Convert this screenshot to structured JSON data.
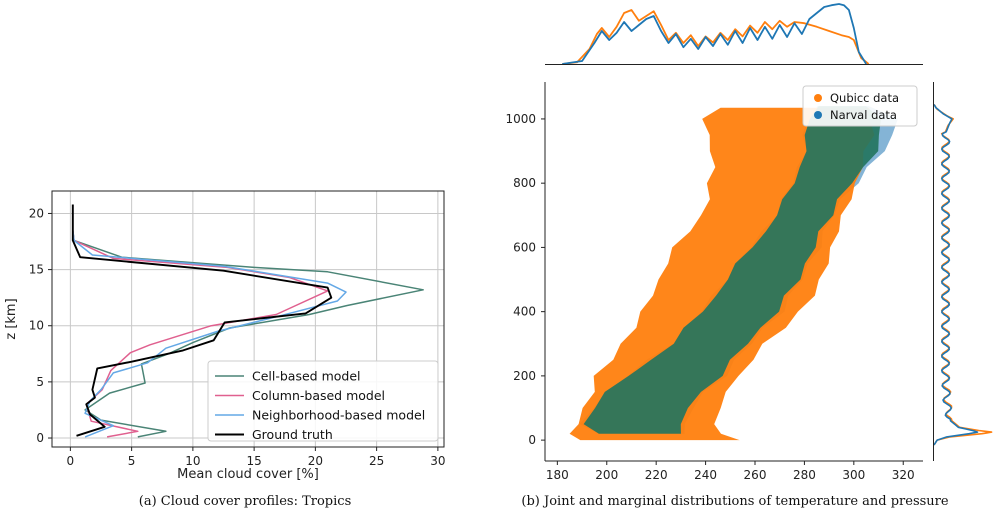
{
  "chart_data": [
    {
      "type": "line",
      "caption": "(a) Cloud cover profiles: Tropics",
      "xlabel": "Mean cloud cover [%]",
      "ylabel": "z [km]",
      "xlim": [
        -1.5,
        30.5
      ],
      "ylim": [
        -0.8,
        22
      ],
      "xticks": [
        0,
        5,
        10,
        15,
        20,
        25,
        30
      ],
      "yticks": [
        0,
        5,
        10,
        15,
        20
      ],
      "grid": true,
      "legend_position": "lower-right",
      "series": [
        {
          "name": "Cell-based model",
          "color": "#4a8476",
          "points": [
            [
              0.2,
              20.8
            ],
            [
              0.2,
              18.5
            ],
            [
              0.3,
              17.6
            ],
            [
              4.2,
              16.1
            ],
            [
              15,
              15.2
            ],
            [
              21,
              14.8
            ],
            [
              28.8,
              13.2
            ],
            [
              22.6,
              11.8
            ],
            [
              19.5,
              11.0
            ],
            [
              13,
              9.8
            ],
            [
              10,
              8.5
            ],
            [
              8,
              7.5
            ],
            [
              5.8,
              6.6
            ],
            [
              6.1,
              4.9
            ],
            [
              3.2,
              4.0
            ],
            [
              1.2,
              2.5
            ],
            [
              2.5,
              1.6
            ],
            [
              7.8,
              0.6
            ],
            [
              5.5,
              0.1
            ]
          ]
        },
        {
          "name": "Column-based model",
          "color": "#e0608f",
          "points": [
            [
              0.2,
              20.8
            ],
            [
              0.2,
              18.5
            ],
            [
              0.3,
              17.6
            ],
            [
              3.5,
              16.0
            ],
            [
              12.8,
              15.2
            ],
            [
              17.9,
              14.3
            ],
            [
              21.0,
              13.1
            ],
            [
              16.8,
              11.0
            ],
            [
              11.5,
              10.0
            ],
            [
              6.5,
              8.3
            ],
            [
              4.9,
              7.6
            ],
            [
              3.3,
              6.0
            ],
            [
              2.6,
              4.3
            ],
            [
              1.3,
              3.0
            ],
            [
              1.7,
              1.5
            ],
            [
              5.5,
              0.6
            ],
            [
              3.0,
              0.1
            ]
          ]
        },
        {
          "name": "Neighborhood-based model",
          "color": "#64a8e6",
          "points": [
            [
              0.2,
              20.8
            ],
            [
              0.2,
              18.5
            ],
            [
              0.3,
              17.6
            ],
            [
              1.8,
              16.3
            ],
            [
              12.5,
              15.3
            ],
            [
              21.0,
              13.8
            ],
            [
              22.5,
              13.0
            ],
            [
              21.8,
              12.2
            ],
            [
              16.8,
              10.8
            ],
            [
              12,
              9.5
            ],
            [
              7.8,
              8.0
            ],
            [
              6.3,
              6.7
            ],
            [
              3.5,
              5.8
            ],
            [
              2.5,
              4.3
            ],
            [
              1.6,
              3.3
            ],
            [
              1.2,
              2.2
            ],
            [
              3.5,
              1.1
            ],
            [
              1.2,
              0.1
            ]
          ]
        },
        {
          "name": "Ground truth",
          "color": "#000000",
          "points": [
            [
              0.2,
              20.8
            ],
            [
              0.2,
              18.5
            ],
            [
              0.2,
              17.6
            ],
            [
              0.8,
              16.1
            ],
            [
              12.5,
              14.9
            ],
            [
              21.0,
              13.4
            ],
            [
              21.3,
              12.5
            ],
            [
              19.2,
              11.1
            ],
            [
              12.6,
              10.3
            ],
            [
              11.7,
              8.7
            ],
            [
              9.2,
              7.8
            ],
            [
              5.0,
              6.8
            ],
            [
              2.2,
              6.2
            ],
            [
              1.8,
              4.3
            ],
            [
              2.0,
              3.6
            ],
            [
              1.3,
              3.0
            ],
            [
              1.6,
              2.1
            ],
            [
              2.8,
              1.0
            ],
            [
              0.5,
              0.2
            ]
          ]
        }
      ]
    },
    {
      "type": "scatter",
      "caption": "(b) Joint and marginal distributions of temperature and pressure",
      "xlim": [
        175,
        328
      ],
      "ylim": [
        1115,
        -65
      ],
      "xticks": [
        180,
        200,
        220,
        240,
        260,
        280,
        300,
        320
      ],
      "yticks": [
        0,
        200,
        400,
        600,
        800,
        1000
      ],
      "legend_position": "top-right",
      "series": [
        {
          "name": "Qubicc data",
          "color": "#ff7f0e",
          "band": [
            [
              0,
              190,
              252
            ],
            [
              20,
              188,
              245
            ],
            [
              50,
              190,
              240
            ],
            [
              100,
              193,
              245
            ],
            [
              150,
              196,
              246
            ],
            [
              200,
              198,
              252
            ],
            [
              250,
              204,
              256
            ],
            [
              300,
              208,
              262
            ],
            [
              350,
              213,
              270
            ],
            [
              400,
              217,
              276
            ],
            [
              450,
              220,
              281
            ],
            [
              500,
              223,
              285
            ],
            [
              550,
              226,
              287
            ],
            [
              600,
              230,
              289
            ],
            [
              650,
              235,
              291
            ],
            [
              700,
              240,
              294
            ],
            [
              750,
              243,
              296
            ],
            [
              800,
              244,
              299
            ],
            [
              850,
              245,
              301
            ],
            [
              900,
              244,
              303
            ],
            [
              950,
              243,
              305
            ],
            [
              1000,
              242,
              305
            ],
            [
              1035,
              247,
              304
            ]
          ]
        },
        {
          "name": "Narval data",
          "color": "#1f77b4",
          "band": [
            [
              20,
              198,
              228
            ],
            [
              50,
              193,
              230
            ],
            [
              100,
              196,
              232
            ],
            [
              150,
              202,
              238
            ],
            [
              200,
              210,
              245
            ],
            [
              250,
              220,
              250
            ],
            [
              300,
              228,
              256
            ],
            [
              350,
              234,
              262
            ],
            [
              400,
              240,
              268
            ],
            [
              450,
              246,
              272
            ],
            [
              500,
              250,
              277
            ],
            [
              550,
              255,
              280
            ],
            [
              600,
              260,
              283
            ],
            [
              650,
              266,
              286
            ],
            [
              700,
              270,
              290
            ],
            [
              750,
              274,
              293
            ],
            [
              800,
              277,
              298
            ],
            [
              850,
              280,
              304
            ],
            [
              900,
              282,
              310
            ],
            [
              950,
              283,
              314
            ],
            [
              1000,
              283,
              314
            ],
            [
              1040,
              288,
              305
            ]
          ]
        }
      ],
      "marginal_x": {
        "qubicc": [
          [
            182,
            0.0
          ],
          [
            188,
            0.03
          ],
          [
            193,
            0.25
          ],
          [
            196,
            0.5
          ],
          [
            198,
            0.6
          ],
          [
            201,
            0.45
          ],
          [
            204,
            0.62
          ],
          [
            207,
            0.85
          ],
          [
            210,
            0.9
          ],
          [
            213,
            0.72
          ],
          [
            216,
            0.8
          ],
          [
            219,
            0.88
          ],
          [
            222,
            0.65
          ],
          [
            225,
            0.4
          ],
          [
            228,
            0.52
          ],
          [
            231,
            0.35
          ],
          [
            234,
            0.48
          ],
          [
            237,
            0.3
          ],
          [
            240,
            0.46
          ],
          [
            243,
            0.36
          ],
          [
            246,
            0.52
          ],
          [
            249,
            0.4
          ],
          [
            252,
            0.58
          ],
          [
            255,
            0.46
          ],
          [
            258,
            0.64
          ],
          [
            261,
            0.52
          ],
          [
            264,
            0.7
          ],
          [
            267,
            0.58
          ],
          [
            270,
            0.72
          ],
          [
            273,
            0.62
          ],
          [
            276,
            0.7
          ],
          [
            280,
            0.68
          ],
          [
            285,
            0.62
          ],
          [
            290,
            0.55
          ],
          [
            295,
            0.48
          ],
          [
            298,
            0.45
          ],
          [
            300,
            0.4
          ],
          [
            303,
            0.1
          ],
          [
            306,
            0.0
          ]
        ],
        "narval": [
          [
            182,
            0.0
          ],
          [
            190,
            0.05
          ],
          [
            195,
            0.35
          ],
          [
            198,
            0.55
          ],
          [
            201,
            0.4
          ],
          [
            204,
            0.52
          ],
          [
            207,
            0.7
          ],
          [
            210,
            0.55
          ],
          [
            213,
            0.65
          ],
          [
            216,
            0.75
          ],
          [
            219,
            0.8
          ],
          [
            222,
            0.55
          ],
          [
            225,
            0.35
          ],
          [
            228,
            0.5
          ],
          [
            231,
            0.28
          ],
          [
            234,
            0.42
          ],
          [
            237,
            0.25
          ],
          [
            240,
            0.45
          ],
          [
            243,
            0.3
          ],
          [
            246,
            0.5
          ],
          [
            249,
            0.32
          ],
          [
            252,
            0.55
          ],
          [
            255,
            0.35
          ],
          [
            258,
            0.6
          ],
          [
            261,
            0.4
          ],
          [
            264,
            0.62
          ],
          [
            267,
            0.42
          ],
          [
            270,
            0.65
          ],
          [
            273,
            0.45
          ],
          [
            276,
            0.68
          ],
          [
            279,
            0.5
          ],
          [
            282,
            0.75
          ],
          [
            285,
            0.85
          ],
          [
            288,
            0.95
          ],
          [
            291,
            0.98
          ],
          [
            294,
            1.0
          ],
          [
            296,
            0.98
          ],
          [
            298,
            0.9
          ],
          [
            300,
            0.6
          ],
          [
            302,
            0.2
          ],
          [
            305,
            0.0
          ]
        ]
      },
      "marginal_y": {
        "qubicc": [
          [
            -15,
            0.0
          ],
          [
            0,
            0.05
          ],
          [
            10,
            0.25
          ],
          [
            20,
            0.75
          ],
          [
            25,
            0.9
          ],
          [
            30,
            0.7
          ],
          [
            40,
            0.4
          ],
          [
            60,
            0.28
          ],
          [
            100,
            0.22
          ],
          [
            150,
            0.2
          ],
          [
            200,
            0.18
          ],
          [
            300,
            0.18
          ],
          [
            500,
            0.18
          ],
          [
            700,
            0.18
          ],
          [
            900,
            0.18
          ],
          [
            960,
            0.18
          ],
          [
            980,
            0.22
          ],
          [
            1000,
            0.3
          ],
          [
            1010,
            0.2
          ],
          [
            1030,
            0.05
          ],
          [
            1045,
            0.0
          ]
        ],
        "narval": [
          [
            -15,
            0.0
          ],
          [
            0,
            0.05
          ],
          [
            10,
            0.2
          ],
          [
            20,
            0.55
          ],
          [
            25,
            0.68
          ],
          [
            30,
            0.6
          ],
          [
            40,
            0.38
          ],
          [
            60,
            0.26
          ],
          [
            100,
            0.21
          ],
          [
            150,
            0.19
          ],
          [
            200,
            0.18
          ],
          [
            300,
            0.18
          ],
          [
            500,
            0.18
          ],
          [
            700,
            0.18
          ],
          [
            900,
            0.18
          ],
          [
            960,
            0.19
          ],
          [
            985,
            0.24
          ],
          [
            1000,
            0.28
          ],
          [
            1015,
            0.15
          ],
          [
            1035,
            0.03
          ],
          [
            1045,
            0.0
          ]
        ]
      }
    }
  ]
}
